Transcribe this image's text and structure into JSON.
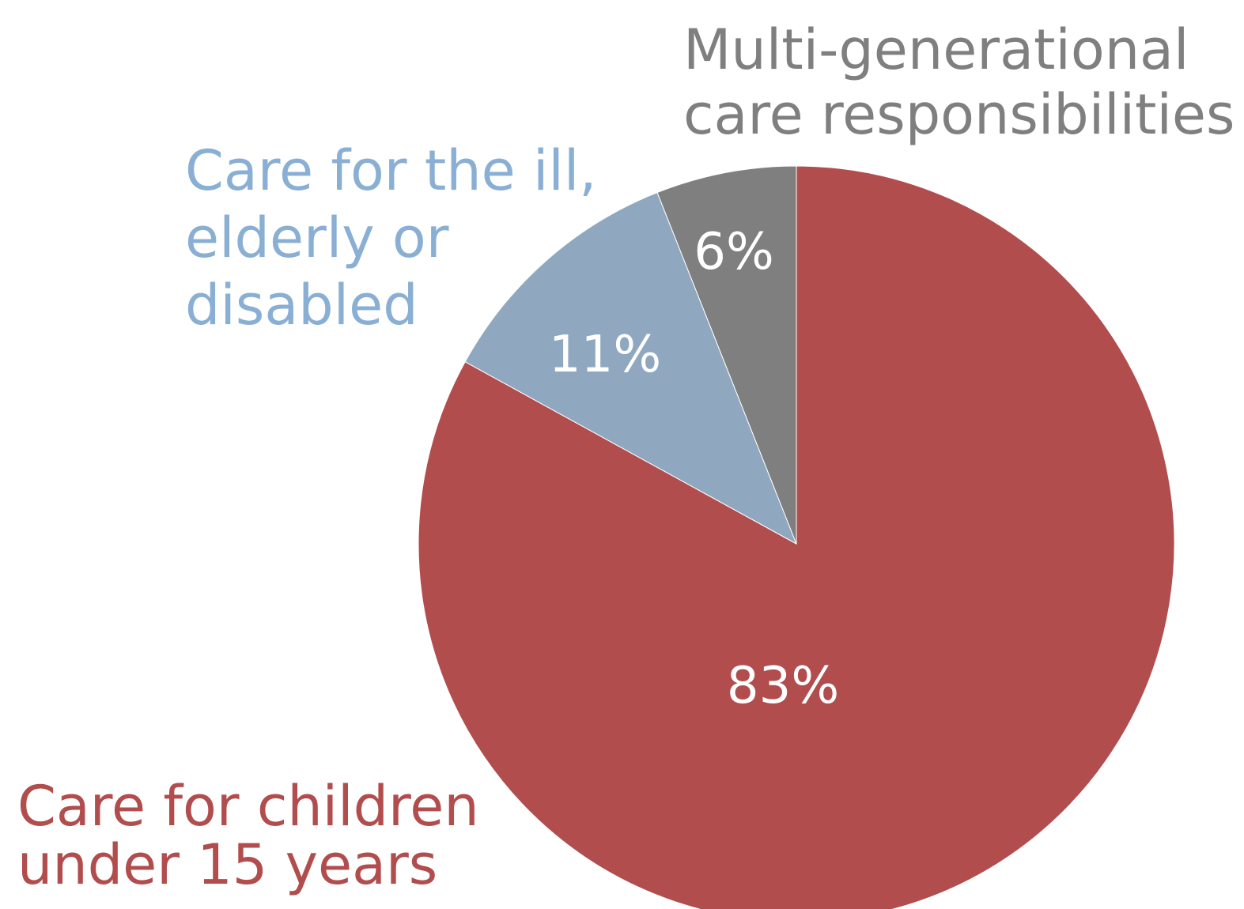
{
  "chart_data": {
    "type": "pie",
    "slices": [
      {
        "label_lines": [
          "Care for children",
          "under 15 years"
        ],
        "value": 83,
        "value_label": "83%",
        "color": "#b24d4e",
        "label_color": "#b24d4e"
      },
      {
        "label_lines": [
          "Care for the ill,",
          "elderly or",
          "disabled"
        ],
        "value": 11,
        "value_label": "11%",
        "color": "#8fa8bf",
        "label_color": "#8aafd4"
      },
      {
        "label_lines": [
          "Multi-generational",
          "care responsibilities"
        ],
        "value": 6,
        "value_label": "6%",
        "color": "#7f7f7f",
        "label_color": "#7f7f7f"
      }
    ],
    "start_angle_deg": 0,
    "direction": "clockwise",
    "legend": "none"
  }
}
